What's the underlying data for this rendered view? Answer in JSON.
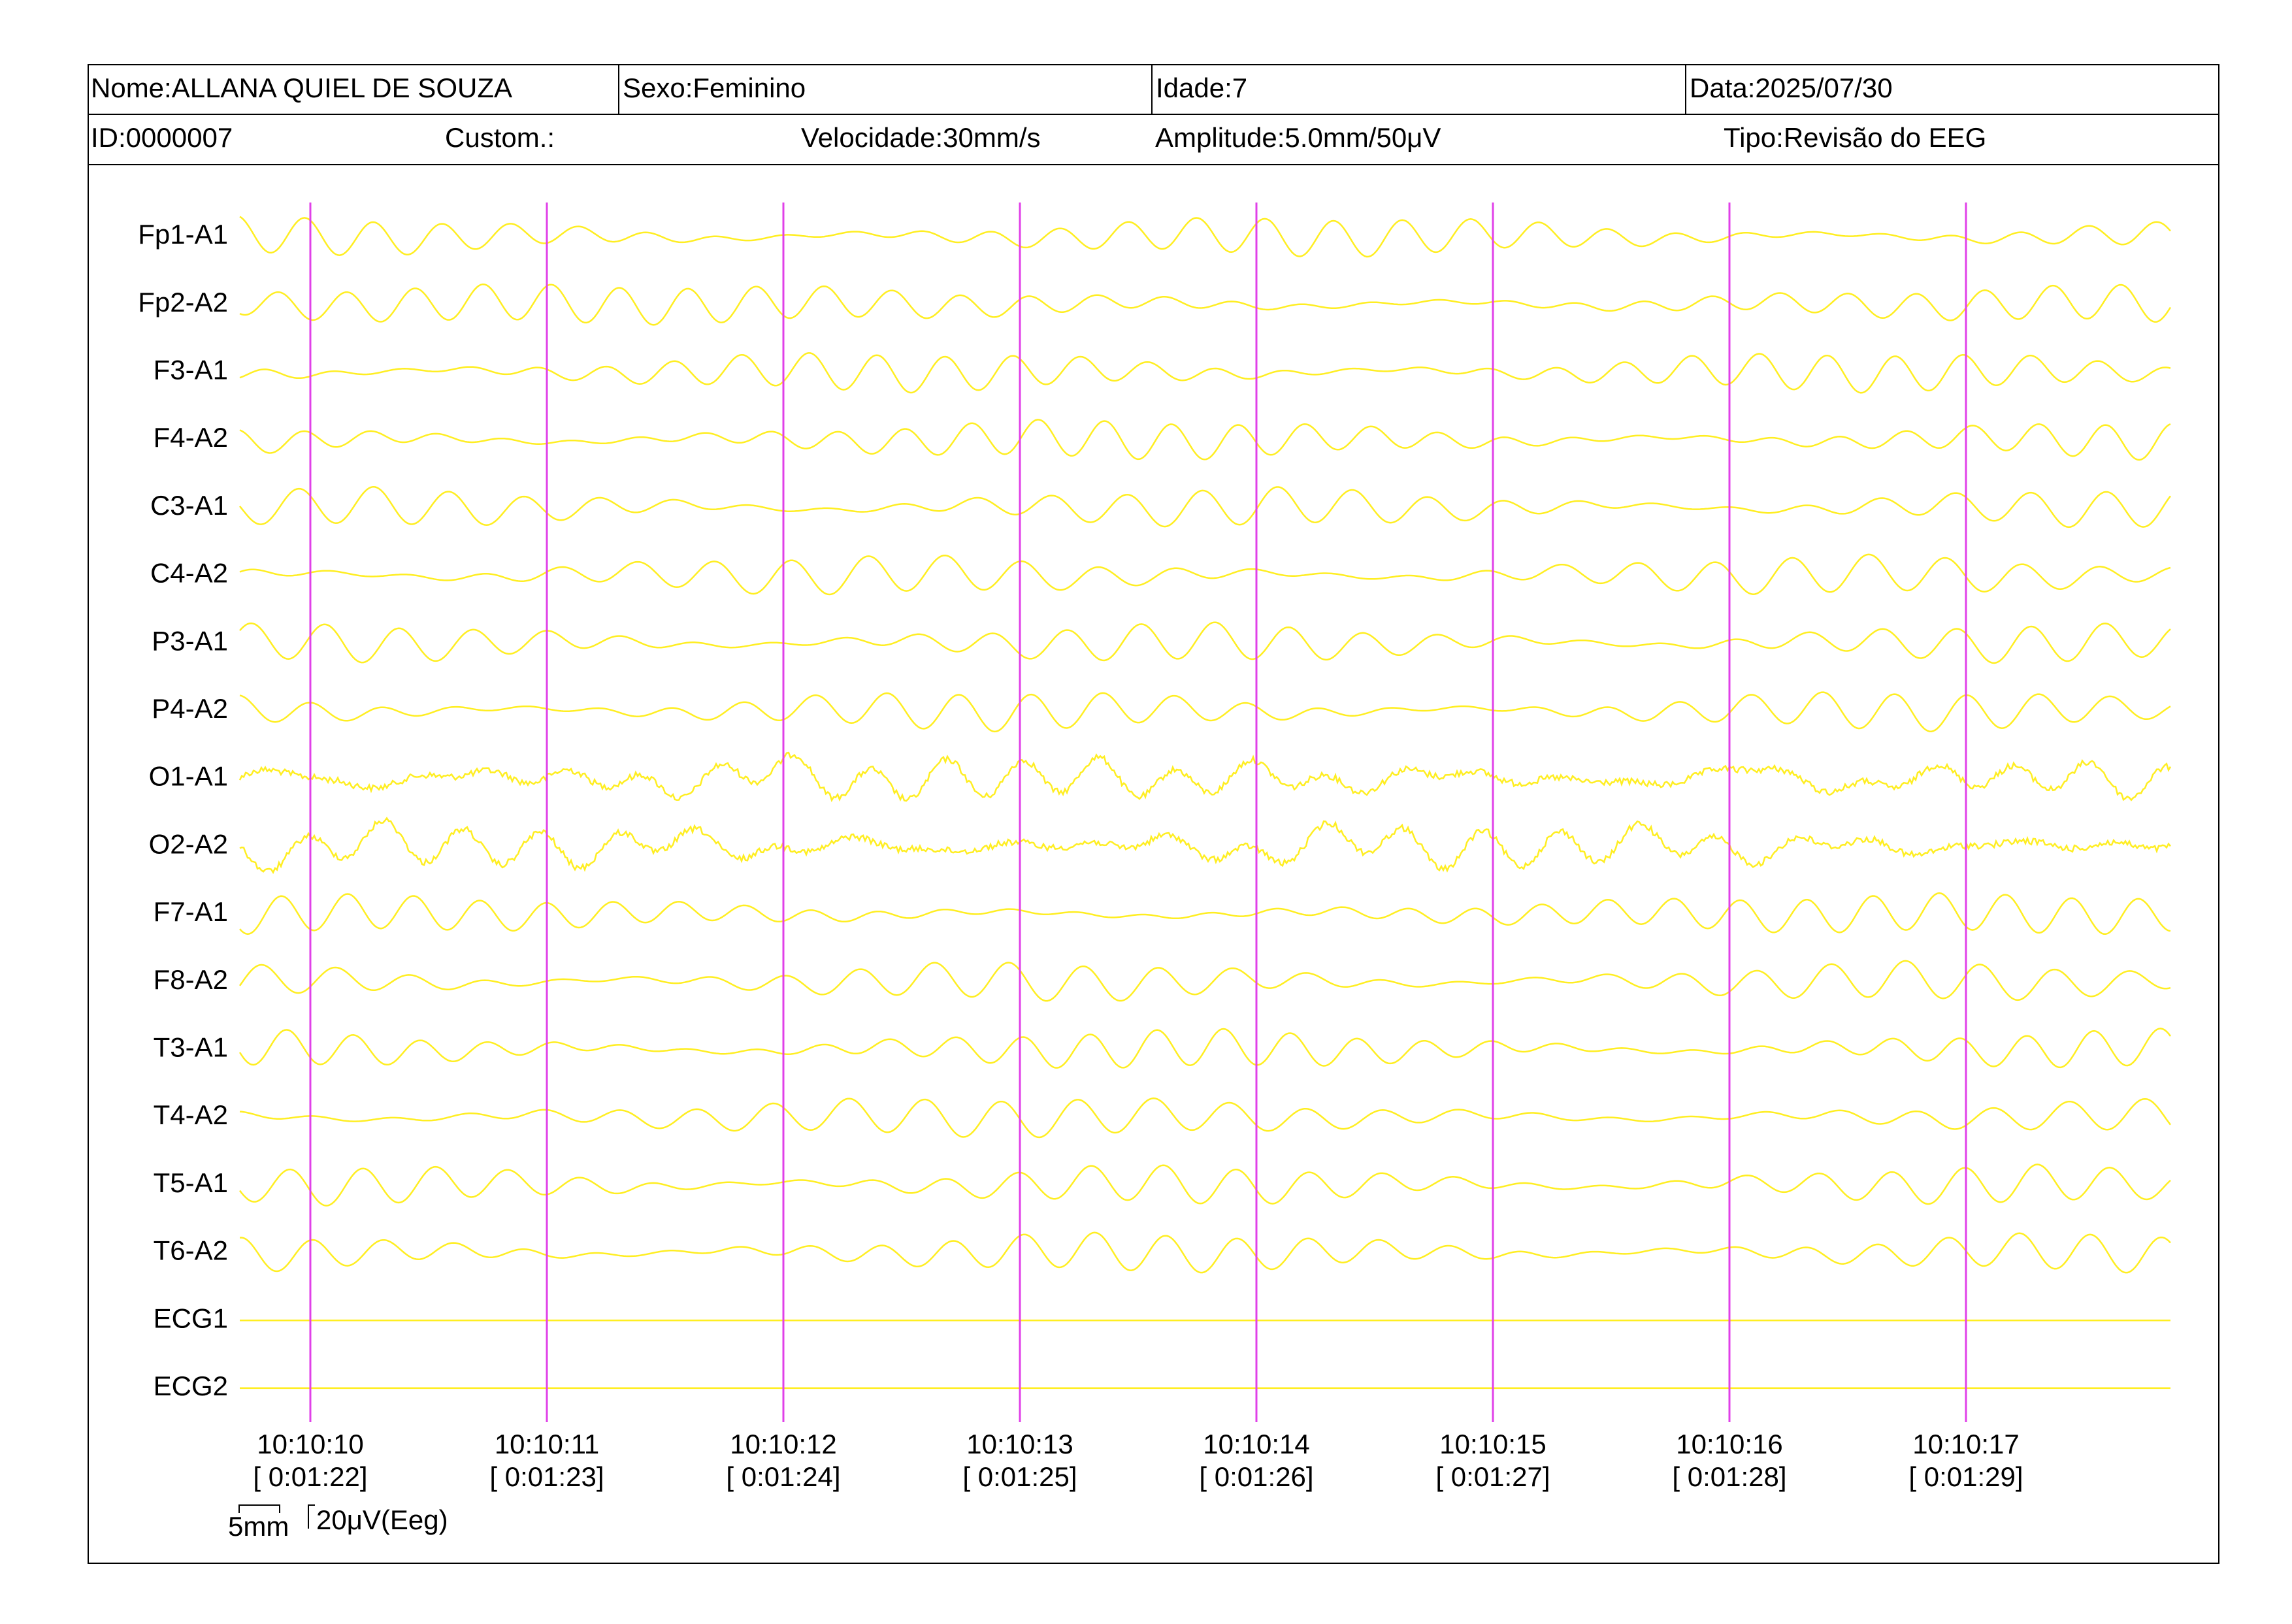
{
  "header": {
    "row1": [
      "Nome:ALLANA QUIEL DE SOUZA",
      "Sexo:Feminino",
      "Idade:7",
      "Data:2025/07/30"
    ],
    "row2": [
      "ID:0000007",
      "Custom.:",
      "Velocidade:30mm/s",
      "Amplitude:5.0mm/50μV",
      "Tipo:Revisão do EEG"
    ]
  },
  "channels": [
    "Fp1-A1",
    "Fp2-A2",
    "F3-A1",
    "F4-A2",
    "C3-A1",
    "C4-A2",
    "P3-A1",
    "P4-A2",
    "O1-A1",
    "O2-A2",
    "F7-A1",
    "F8-A2",
    "T3-A1",
    "T4-A2",
    "T5-A1",
    "T6-A2",
    "ECG1",
    "ECG2"
  ],
  "time_markers": [
    {
      "time": "10:10:10",
      "elapsed": "[ 0:01:22]"
    },
    {
      "time": "10:10:11",
      "elapsed": "[ 0:01:23]"
    },
    {
      "time": "10:10:12",
      "elapsed": "[ 0:01:24]"
    },
    {
      "time": "10:10:13",
      "elapsed": "[ 0:01:25]"
    },
    {
      "time": "10:10:14",
      "elapsed": "[ 0:01:26]"
    },
    {
      "time": "10:10:15",
      "elapsed": "[ 0:01:27]"
    },
    {
      "time": "10:10:16",
      "elapsed": "[ 0:01:28]"
    },
    {
      "time": "10:10:17",
      "elapsed": "[ 0:01:29]"
    }
  ],
  "scale": {
    "time": "5mm",
    "amplitude": "20μV(Eeg)"
  }
}
